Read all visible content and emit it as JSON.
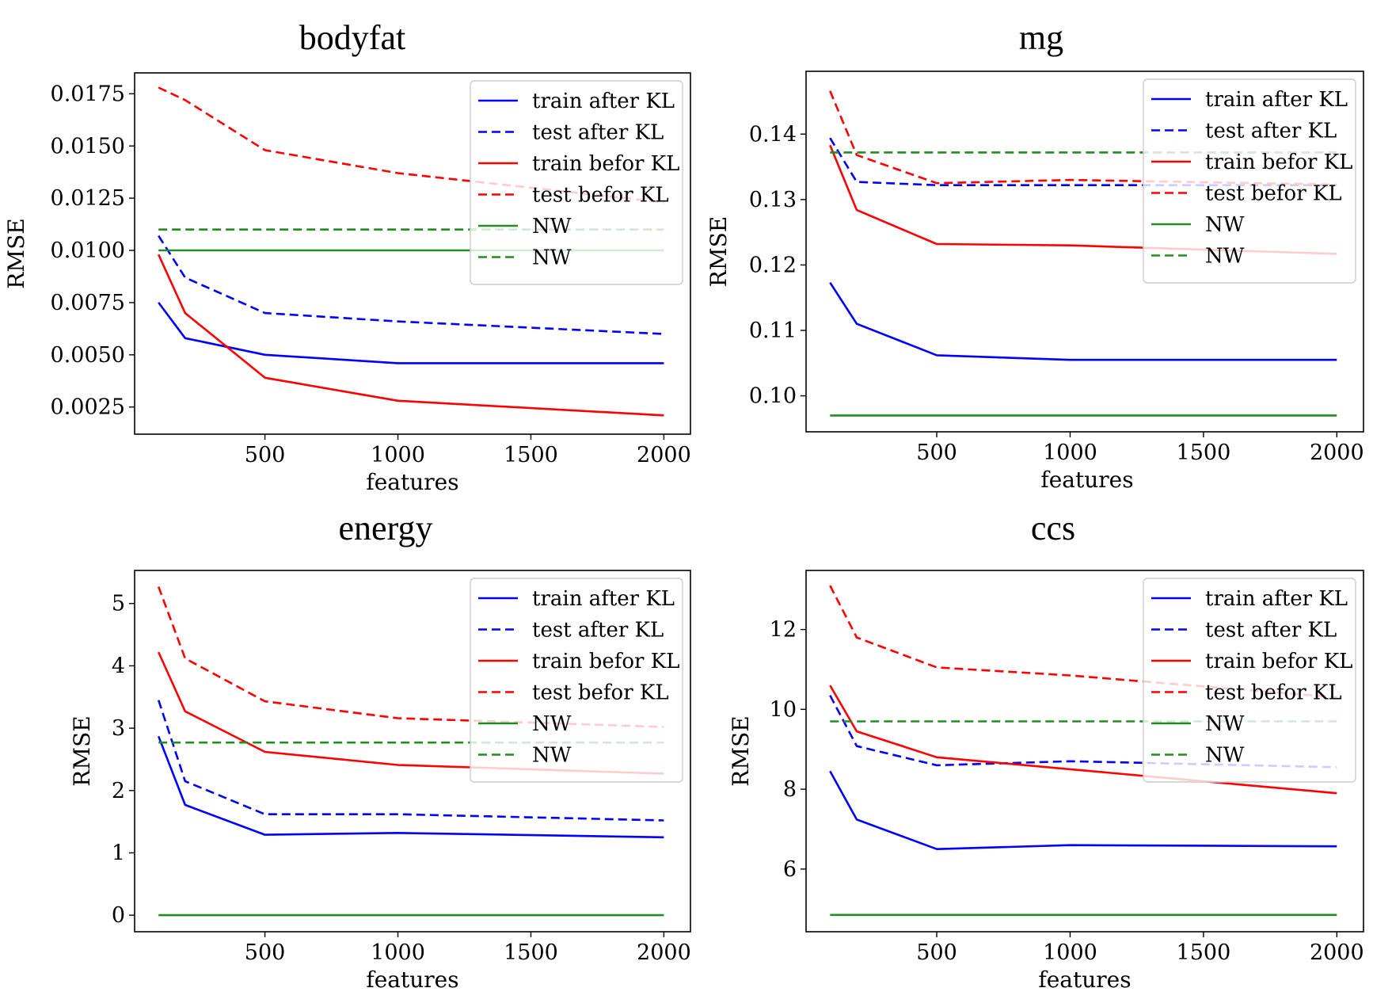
{
  "chart_data": [
    {
      "type": "line",
      "title": "bodyfat",
      "xlabel": "features",
      "ylabel": "RMSE",
      "xlim": [
        10,
        2100
      ],
      "ylim": [
        0.0012,
        0.0185
      ],
      "xticks": [
        500,
        1000,
        1500,
        2000
      ],
      "yticks": [
        0.0025,
        0.005,
        0.0075,
        0.01,
        0.0125,
        0.015,
        0.0175
      ],
      "ytick_labels": [
        "0.0025",
        "0.0050",
        "0.0075",
        "0.0100",
        "0.0125",
        "0.0150",
        "0.0175"
      ],
      "x": [
        100,
        200,
        500,
        1000,
        2000
      ],
      "legend_position": "top-right",
      "series": [
        {
          "name": "train after KL",
          "color": "#0000ff",
          "dash": false,
          "values": [
            0.0075,
            0.0058,
            0.005,
            0.0046,
            0.0046
          ]
        },
        {
          "name": "test after KL",
          "color": "#0000ff",
          "dash": true,
          "values": [
            0.0107,
            0.0087,
            0.007,
            0.0066,
            0.006
          ]
        },
        {
          "name": "train befor KL",
          "color": "#ff0000",
          "dash": false,
          "values": [
            0.0098,
            0.007,
            0.0039,
            0.0028,
            0.0021
          ]
        },
        {
          "name": "test befor KL",
          "color": "#ff0000",
          "dash": true,
          "values": [
            0.0178,
            0.0172,
            0.0148,
            0.0137,
            0.0123
          ]
        },
        {
          "name": "NW",
          "color": "#228b22",
          "dash": false,
          "values": [
            0.01,
            0.01,
            0.01,
            0.01,
            0.01
          ]
        },
        {
          "name": "NW",
          "color": "#228b22",
          "dash": true,
          "values": [
            0.011,
            0.011,
            0.011,
            0.011,
            0.011
          ]
        }
      ]
    },
    {
      "type": "line",
      "title": "mg",
      "xlabel": "features",
      "ylabel": "RMSE",
      "xlim": [
        10,
        2100
      ],
      "ylim": [
        0.0945,
        0.1496
      ],
      "xticks": [
        500,
        1000,
        1500,
        2000
      ],
      "yticks": [
        0.1,
        0.11,
        0.12,
        0.13,
        0.14
      ],
      "ytick_labels": [
        "0.10",
        "0.11",
        "0.12",
        "0.13",
        "0.14"
      ],
      "x": [
        100,
        200,
        500,
        1000,
        2000
      ],
      "legend_position": "top-right",
      "series": [
        {
          "name": "train after KL",
          "color": "#0000ff",
          "dash": false,
          "values": [
            0.1173,
            0.111,
            0.1062,
            0.1055,
            0.1055
          ]
        },
        {
          "name": "test after KL",
          "color": "#0000ff",
          "dash": true,
          "values": [
            0.1394,
            0.1327,
            0.1322,
            0.1322,
            0.1322
          ]
        },
        {
          "name": "train befor KL",
          "color": "#ff0000",
          "dash": false,
          "values": [
            0.1383,
            0.1284,
            0.1232,
            0.123,
            0.1217
          ]
        },
        {
          "name": "test befor KL",
          "color": "#ff0000",
          "dash": true,
          "values": [
            0.1466,
            0.1368,
            0.1325,
            0.133,
            0.1323
          ]
        },
        {
          "name": "NW",
          "color": "#228b22",
          "dash": false,
          "values": [
            0.097,
            0.097,
            0.097,
            0.097,
            0.097
          ]
        },
        {
          "name": "NW",
          "color": "#228b22",
          "dash": true,
          "values": [
            0.1372,
            0.1372,
            0.1372,
            0.1372,
            0.1372
          ]
        }
      ]
    },
    {
      "type": "line",
      "title": "energy",
      "xlabel": "features",
      "ylabel": "RMSE",
      "xlim": [
        10,
        2100
      ],
      "ylim": [
        -0.265,
        5.53
      ],
      "xticks": [
        500,
        1000,
        1500,
        2000
      ],
      "yticks": [
        0,
        1,
        2,
        3,
        4,
        5
      ],
      "ytick_labels": [
        "0",
        "1",
        "2",
        "3",
        "4",
        "5"
      ],
      "x": [
        100,
        200,
        500,
        1000,
        2000
      ],
      "legend_position": "top-right",
      "series": [
        {
          "name": "train after KL",
          "color": "#0000ff",
          "dash": false,
          "values": [
            2.87,
            1.77,
            1.29,
            1.32,
            1.25
          ]
        },
        {
          "name": "test after KL",
          "color": "#0000ff",
          "dash": true,
          "values": [
            3.45,
            2.15,
            1.62,
            1.62,
            1.52
          ]
        },
        {
          "name": "train befor KL",
          "color": "#ff0000",
          "dash": false,
          "values": [
            4.22,
            3.27,
            2.62,
            2.41,
            2.27
          ]
        },
        {
          "name": "test befor KL",
          "color": "#ff0000",
          "dash": true,
          "values": [
            5.27,
            4.12,
            3.43,
            3.16,
            3.02
          ]
        },
        {
          "name": "NW",
          "color": "#228b22",
          "dash": false,
          "values": [
            0.0,
            0.0,
            0.0,
            0.0,
            0.0
          ]
        },
        {
          "name": "NW",
          "color": "#228b22",
          "dash": true,
          "values": [
            2.77,
            2.77,
            2.77,
            2.77,
            2.77
          ]
        }
      ]
    },
    {
      "type": "line",
      "title": "ccs",
      "xlabel": "features",
      "ylabel": "RMSE",
      "xlim": [
        10,
        2100
      ],
      "ylim": [
        4.43,
        13.48
      ],
      "xticks": [
        500,
        1000,
        1500,
        2000
      ],
      "yticks": [
        6,
        8,
        10,
        12
      ],
      "ytick_labels": [
        "6",
        "8",
        "10",
        "12"
      ],
      "x": [
        100,
        200,
        500,
        1000,
        2000
      ],
      "legend_position": "top-right",
      "series": [
        {
          "name": "train after KL",
          "color": "#0000ff",
          "dash": false,
          "values": [
            8.45,
            7.24,
            6.5,
            6.6,
            6.57
          ]
        },
        {
          "name": "test after KL",
          "color": "#0000ff",
          "dash": true,
          "values": [
            10.35,
            9.08,
            8.6,
            8.7,
            8.55
          ]
        },
        {
          "name": "train befor KL",
          "color": "#ff0000",
          "dash": false,
          "values": [
            10.6,
            9.45,
            8.8,
            8.5,
            7.9
          ]
        },
        {
          "name": "test befor KL",
          "color": "#ff0000",
          "dash": true,
          "values": [
            13.1,
            11.8,
            11.05,
            10.85,
            10.3
          ]
        },
        {
          "name": "NW",
          "color": "#228b22",
          "dash": false,
          "values": [
            4.85,
            4.85,
            4.85,
            4.85,
            4.85
          ]
        },
        {
          "name": "NW",
          "color": "#228b22",
          "dash": true,
          "values": [
            9.7,
            9.7,
            9.7,
            9.7,
            9.7
          ]
        }
      ]
    }
  ]
}
